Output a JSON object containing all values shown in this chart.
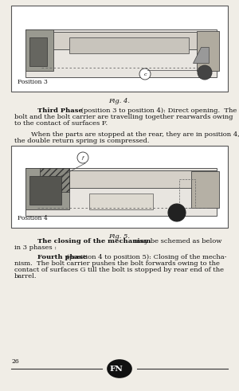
{
  "bg_color": "#f0ede6",
  "page_number": "26",
  "fig4_caption": "Fig. 4.",
  "fig5_caption": "Fig. 5.",
  "para1_line1": "        Third Phase (position 3 to position 4): Direct opening.  The",
  "para1_line2": "bolt and the bolt carrier are travelling together rearwards owing",
  "para1_line3": "to the contact of surfaces F.",
  "para2_line1": "        When the parts are stopped at the rear, they are in position 4,",
  "para2_line2": "the double return spring is compressed.",
  "para3_line1": "        The closing of the mechanism may be schemed as below",
  "para3_line2": "in 3 phases :",
  "para4_line1": "        Fourth phase (position 4 to position 5): Closing of the mecha-",
  "para4_line2": "nism.  The bolt carrier pushes the bolt forwards owing to the",
  "para4_line3": "contact of surfaces G till the bolt is stopped by rear end of the",
  "para4_line4": "barrel.",
  "pos3_label": "Position 3",
  "pos4_label": "Position 4",
  "circle_c_label": "c",
  "circle_f_label": "f",
  "bold_third": "Third Phase",
  "bold_closing": "The closing of the mechanism",
  "bold_fourth": "Fourth phase"
}
